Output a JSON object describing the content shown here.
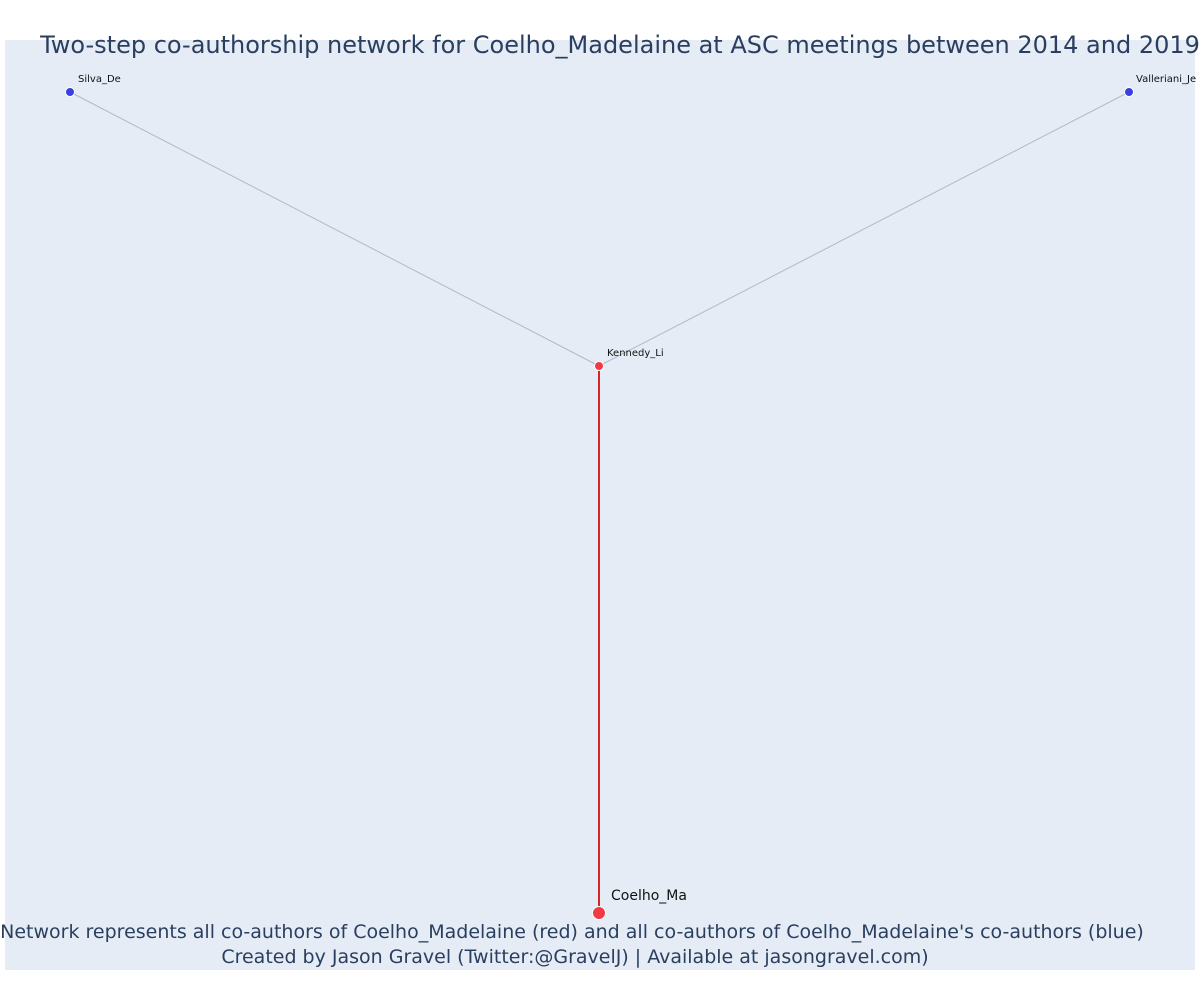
{
  "title": "Two-step co-authorship network for Coelho_Madelaine at ASC meetings between 2014 and 2019",
  "caption": {
    "line1": "Network represents all co-authors of Coelho_Madelaine (red) and all co-authors of Coelho_Madelaine's co-authors (blue)",
    "line2": "Created by Jason Gravel (Twitter:@GravelJ) | Available at jasongravel.com)"
  },
  "colors": {
    "background": "#e5ecf6",
    "primary_node": "#ef3b45",
    "secondary_node": "#3b3fe0",
    "primary_edge": "#d62728",
    "secondary_edge": "#b4b7c8",
    "text": "#2a3f5f"
  },
  "chart_data": {
    "type": "network",
    "nodes": [
      {
        "id": "Coelho_Ma",
        "label": "Coelho_Ma",
        "group": "focal"
      },
      {
        "id": "Kennedy_Li",
        "label": "Kennedy_Li",
        "group": "coauthor"
      },
      {
        "id": "Silva_De",
        "label": "Silva_De",
        "group": "second-step"
      },
      {
        "id": "Valleriani_Je",
        "label": "Valleriani_Je",
        "group": "second-step"
      }
    ],
    "edges": [
      {
        "source": "Coelho_Ma",
        "target": "Kennedy_Li",
        "type": "direct"
      },
      {
        "source": "Kennedy_Li",
        "target": "Silva_De",
        "type": "second-step"
      },
      {
        "source": "Kennedy_Li",
        "target": "Valleriani_Je",
        "type": "second-step"
      }
    ]
  }
}
